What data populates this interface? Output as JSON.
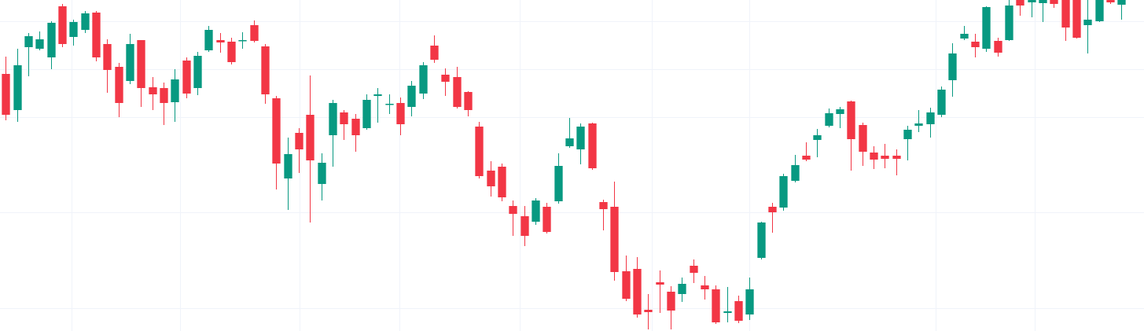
{
  "chart_data": {
    "type": "candlestick",
    "up_color": "#089981",
    "down_color": "#f23645",
    "grid": true,
    "xlim": [
      -0.5,
      101
    ],
    "xticks": [
      5.85,
      15.48,
      26.09,
      34.95,
      45.63,
      57.35,
      66.0,
      82.54,
      91.27
    ],
    "ylim": [
      0,
      421
    ],
    "yticks": [
      29,
      151,
      272,
      333,
      394
    ],
    "open": [
      327,
      281,
      361,
      359,
      348,
      413,
      374,
      383,
      405,
      365,
      336,
      318,
      370,
      310,
      309,
      291,
      344,
      309,
      357,
      370,
      368,
      369,
      389,
      362,
      296,
      194,
      252,
      275,
      187,
      249,
      278,
      270,
      258,
      299,
      288,
      290,
      285,
      302,
      363,
      326,
      323,
      304,
      260,
      204,
      209,
      159,
      146,
      139,
      158,
      165,
      235,
      231,
      264,
      164,
      158,
      76,
      79,
      27,
      62,
      50,
      47,
      83,
      58,
      53,
      23,
      38,
      21,
      93,
      158,
      157,
      191,
      223,
      243,
      261,
      276,
      292,
      262,
      227,
      223,
      223,
      244,
      261,
      263,
      275,
      319,
      372,
      368,
      359,
      369,
      370,
      421,
      418,
      417,
      421,
      421,
      421,
      389,
      394,
      421,
      415
    ],
    "high": [
      349,
      359,
      379,
      381,
      394,
      416,
      396,
      407,
      407,
      371,
      341,
      378,
      370,
      323,
      316,
      333,
      348,
      355,
      388,
      379,
      373,
      380,
      395,
      365,
      299,
      246,
      258,
      325,
      226,
      294,
      281,
      276,
      301,
      309,
      301,
      297,
      318,
      342,
      376,
      334,
      336,
      305,
      266,
      216,
      213,
      166,
      159,
      169,
      163,
      226,
      271,
      264,
      265,
      167,
      190,
      96,
      94,
      47,
      77,
      57,
      68,
      91,
      70,
      58,
      56,
      45,
      68,
      139,
      163,
      200,
      224,
      240,
      257,
      283,
      285,
      293,
      265,
      235,
      238,
      231,
      261,
      281,
      284,
      311,
      366,
      388,
      378,
      413,
      373,
      421,
      421,
      421,
      421,
      421,
      421,
      421,
      421,
      421,
      421,
      421
    ],
    "low": [
      268,
      266,
      324,
      357,
      333,
      361,
      363,
      379,
      343,
      303,
      272,
      314,
      285,
      281,
      262,
      266,
      296,
      300,
      355,
      354,
      339,
      359,
      367,
      289,
      180,
      154,
      201,
      138,
      166,
      209,
      243,
      228,
      256,
      265,
      276,
      249,
      273,
      295,
      341,
      299,
      283,
      273,
      194,
      171,
      165,
      121,
      108,
      135,
      124,
      162,
      233,
      212,
      205,
      128,
      64,
      38,
      17,
      2,
      23,
      2,
      37,
      61,
      40,
      9,
      11,
      10,
      14,
      91,
      125,
      153,
      189,
      216,
      221,
      259,
      258,
      204,
      210,
      206,
      207,
      198,
      217,
      253,
      246,
      272,
      298,
      370,
      348,
      355,
      349,
      369,
      401,
      399,
      393,
      411,
      369,
      372,
      353,
      393,
      416,
      396
    ],
    "close": [
      275,
      338,
      375,
      371,
      392,
      365,
      393,
      404,
      348,
      332,
      290,
      365,
      309,
      301,
      290,
      320,
      302,
      350,
      383,
      367,
      342,
      370,
      369,
      301,
      213,
      225,
      231,
      217,
      214,
      290,
      263,
      249,
      294,
      301,
      289,
      263,
      312,
      338,
      345,
      317,
      285,
      281,
      197,
      184,
      170,
      149,
      121,
      166,
      126,
      210,
      245,
      260,
      207,
      155,
      75,
      41,
      21,
      24,
      59,
      26,
      60,
      74,
      53,
      11,
      25,
      13,
      53,
      138,
      151,
      197,
      211,
      218,
      249,
      277,
      282,
      244,
      228,
      218,
      219,
      219,
      256,
      264,
      278,
      307,
      353,
      378,
      361,
      412,
      354,
      414,
      414,
      421,
      421,
      416,
      386,
      373,
      396,
      421,
      418,
      421
    ]
  }
}
